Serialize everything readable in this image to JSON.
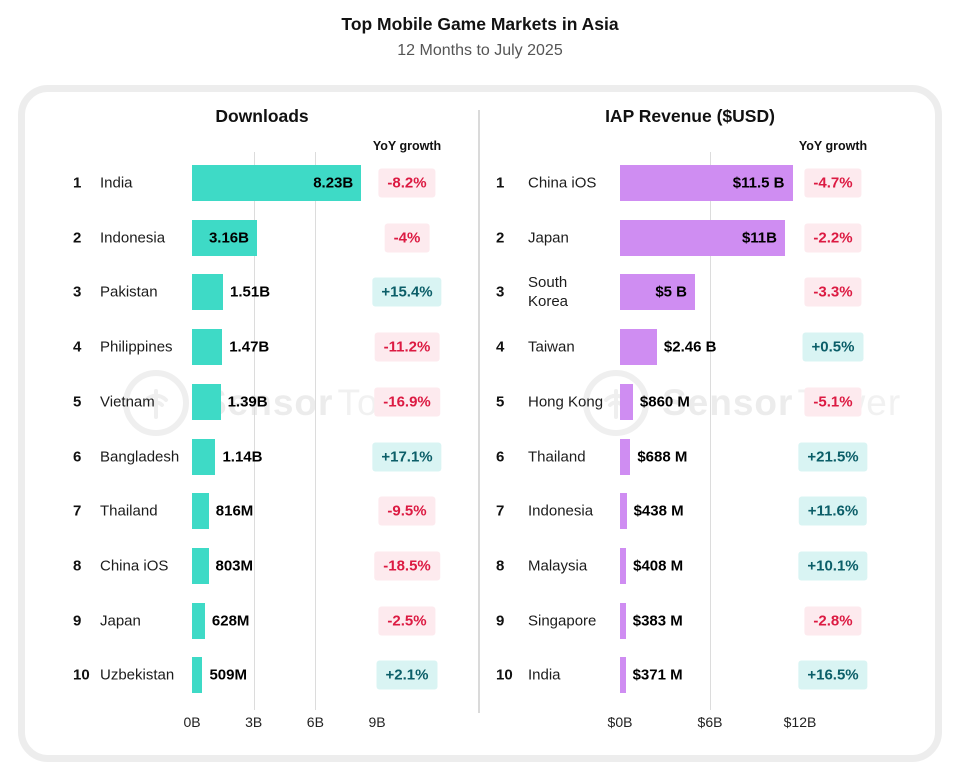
{
  "page": {
    "title": "Top Mobile Game Markets in Asia",
    "subtitle": "12 Months to July 2025"
  },
  "watermark": {
    "brand_bold": "Sensor",
    "brand_light": "Tower"
  },
  "colors": {
    "downloads_bar": "#3edac6",
    "revenue_bar": "#cf8df2",
    "negative_badge_bg": "#fdeaee",
    "negative_badge_text": "#dc1a42",
    "positive_badge_bg": "#d9f4f3",
    "positive_badge_text": "#0b5e68"
  },
  "chart_data": [
    {
      "type": "bar",
      "orientation": "horizontal",
      "title": "Downloads",
      "yoy_header": "YoY growth",
      "bar_color": "#3edac6",
      "xlim": [
        0,
        9
      ],
      "unit": "billions of downloads",
      "axis": {
        "ticks": [
          {
            "label": "0B",
            "v": 0
          },
          {
            "label": "3B",
            "v": 3
          },
          {
            "label": "6B",
            "v": 6
          },
          {
            "label": "9B",
            "v": 9
          }
        ],
        "gridlines": [
          3,
          6
        ]
      },
      "rows": [
        {
          "rank": "1",
          "label": "India",
          "value": 8.23,
          "value_label": "8.23B",
          "yoy": "-8.2%",
          "yoy_positive": false,
          "value_inside": true
        },
        {
          "rank": "2",
          "label": "Indonesia",
          "value": 3.16,
          "value_label": "3.16B",
          "yoy": "-4%",
          "yoy_positive": false,
          "value_inside": true
        },
        {
          "rank": "3",
          "label": "Pakistan",
          "value": 1.51,
          "value_label": "1.51B",
          "yoy": "+15.4%",
          "yoy_positive": true,
          "value_inside": false
        },
        {
          "rank": "4",
          "label": "Philippines",
          "value": 1.47,
          "value_label": "1.47B",
          "yoy": "-11.2%",
          "yoy_positive": false,
          "value_inside": false
        },
        {
          "rank": "5",
          "label": "Vietnam",
          "value": 1.39,
          "value_label": "1.39B",
          "yoy": "-16.9%",
          "yoy_positive": false,
          "value_inside": false
        },
        {
          "rank": "6",
          "label": "Bangladesh",
          "value": 1.14,
          "value_label": "1.14B",
          "yoy": "+17.1%",
          "yoy_positive": true,
          "value_inside": false
        },
        {
          "rank": "7",
          "label": "Thailand",
          "value": 0.816,
          "value_label": "816M",
          "yoy": "-9.5%",
          "yoy_positive": false,
          "value_inside": false
        },
        {
          "rank": "8",
          "label": "China iOS",
          "value": 0.803,
          "value_label": "803M",
          "yoy": "-18.5%",
          "yoy_positive": false,
          "value_inside": false
        },
        {
          "rank": "9",
          "label": "Japan",
          "value": 0.628,
          "value_label": "628M",
          "yoy": "-2.5%",
          "yoy_positive": false,
          "value_inside": false
        },
        {
          "rank": "10",
          "label": "Uzbekistan",
          "value": 0.509,
          "value_label": "509M",
          "yoy": "+2.1%",
          "yoy_positive": true,
          "value_inside": false
        }
      ]
    },
    {
      "type": "bar",
      "orientation": "horizontal",
      "title": "IAP Revenue ($USD)",
      "yoy_header": "YoY growth",
      "bar_color": "#cf8df2",
      "xlim": [
        0,
        12
      ],
      "unit": "billions USD",
      "axis": {
        "ticks": [
          {
            "label": "$0B",
            "v": 0
          },
          {
            "label": "$6B",
            "v": 6
          },
          {
            "label": "$12B",
            "v": 12
          }
        ],
        "gridlines": [
          6
        ]
      },
      "rows": [
        {
          "rank": "1",
          "label": "China iOS",
          "value": 11.5,
          "value_label": "$11.5 B",
          "yoy": "-4.7%",
          "yoy_positive": false,
          "value_inside": true
        },
        {
          "rank": "2",
          "label": "Japan",
          "value": 11.0,
          "value_label": "$11B",
          "yoy": "-2.2%",
          "yoy_positive": false,
          "value_inside": true
        },
        {
          "rank": "3",
          "label": "South Korea",
          "value": 5.0,
          "value_label": "$5 B",
          "yoy": "-3.3%",
          "yoy_positive": false,
          "value_inside": true
        },
        {
          "rank": "4",
          "label": "Taiwan",
          "value": 2.46,
          "value_label": "$2.46 B",
          "yoy": "+0.5%",
          "yoy_positive": true,
          "value_inside": false
        },
        {
          "rank": "5",
          "label": "Hong Kong",
          "value": 0.86,
          "value_label": "$860 M",
          "yoy": "-5.1%",
          "yoy_positive": false,
          "value_inside": false
        },
        {
          "rank": "6",
          "label": "Thailand",
          "value": 0.688,
          "value_label": "$688 M",
          "yoy": "+21.5%",
          "yoy_positive": true,
          "value_inside": false
        },
        {
          "rank": "7",
          "label": "Indonesia",
          "value": 0.438,
          "value_label": "$438 M",
          "yoy": "+11.6%",
          "yoy_positive": true,
          "value_inside": false
        },
        {
          "rank": "8",
          "label": "Malaysia",
          "value": 0.408,
          "value_label": "$408 M",
          "yoy": "+10.1%",
          "yoy_positive": true,
          "value_inside": false
        },
        {
          "rank": "9",
          "label": "Singapore",
          "value": 0.383,
          "value_label": "$383 M",
          "yoy": "-2.8%",
          "yoy_positive": false,
          "value_inside": false
        },
        {
          "rank": "10",
          "label": "India",
          "value": 0.371,
          "value_label": "$371 M",
          "yoy": "+16.5%",
          "yoy_positive": true,
          "value_inside": false
        }
      ]
    }
  ]
}
